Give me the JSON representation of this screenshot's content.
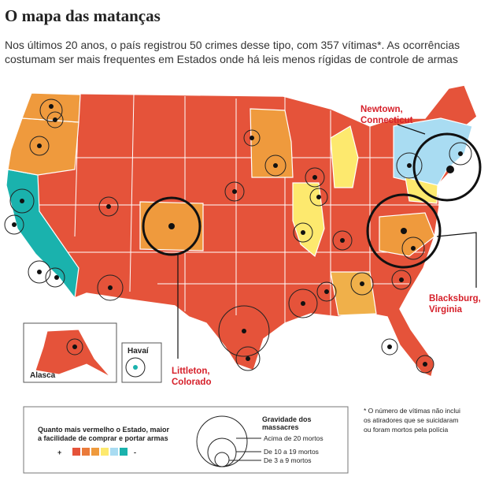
{
  "header": {
    "title": "O mapa das matanças",
    "subtitle": [
      "Nos últimos 20 anos, o país registrou 50 crimes desse tipo, com 357 vítimas*. As ocorrências",
      "costumam ser mais frequentes em Estados onde há leis menos rígidas de controle de armas"
    ]
  },
  "map": {
    "annotations": {
      "newtown": [
        "Newtown,",
        "Connecticut"
      ],
      "blacksburg": [
        "Blacksburg,",
        "Virginia"
      ],
      "littleton": [
        "Littleton,",
        "Colorado"
      ]
    },
    "insets": {
      "alaska": "Alasca",
      "hawaii": "Havaí"
    }
  },
  "legend": {
    "color_title": [
      "Quanto mais vermelho o Estado, maior",
      "a facilidade de comprar e portar armas"
    ],
    "plus": "+",
    "minus": "-",
    "size_title": [
      "Gravidade dos",
      "massacres"
    ],
    "sizes": [
      "Acima de 20 mortos",
      "De 10 a 19 mortos",
      "De 3 a 9 mortos"
    ]
  },
  "footnote": [
    "* O número de vítimas não inclui",
    "os atiradores que se suicidaram",
    "ou foram mortos pela polícia"
  ]
}
